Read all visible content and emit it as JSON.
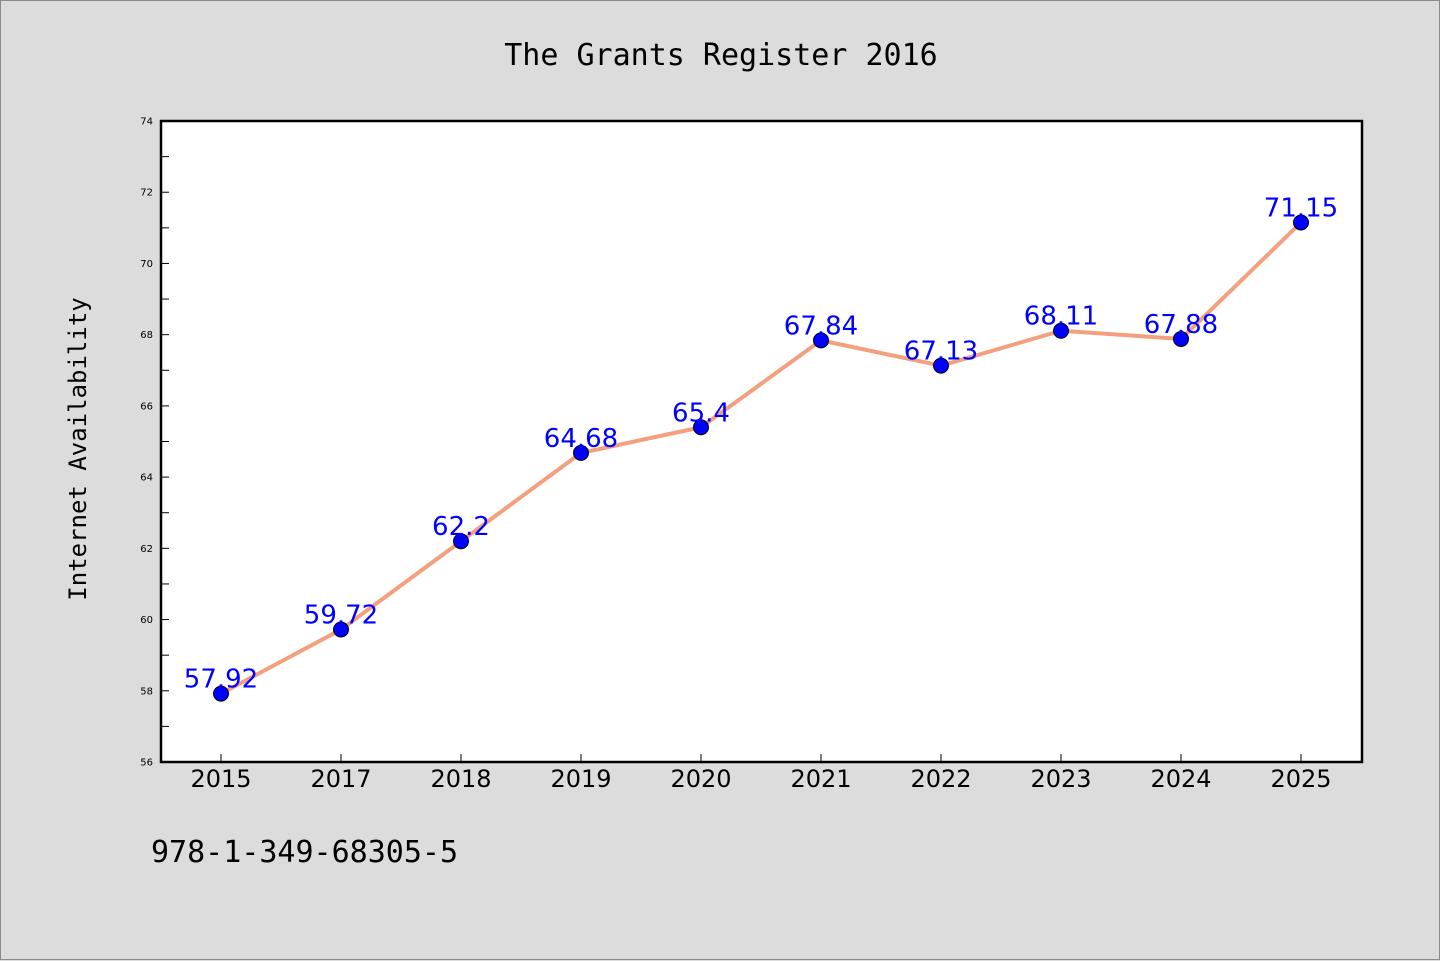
{
  "chart_data": {
    "type": "line",
    "title": "The Grants Register 2016",
    "xlabel": "",
    "ylabel": "Internet Availability",
    "categories": [
      "2015",
      "2017",
      "2018",
      "2019",
      "2020",
      "2021",
      "2022",
      "2023",
      "2024",
      "2025"
    ],
    "series": [
      {
        "values": [
          57.92,
          59.72,
          62.2,
          64.68,
          65.4,
          67.84,
          67.13,
          68.11,
          67.88,
          71.15
        ],
        "labels": [
          "57.92",
          "59.72",
          "62.2",
          "64.68",
          "65.4",
          "67.84",
          "67.13",
          "68.11",
          "67.88",
          "71.15"
        ],
        "line_color": "#f4a07e",
        "marker_color": "#0000ff"
      }
    ],
    "ylim": [
      56,
      74
    ],
    "yticks": [
      "56",
      "58",
      "60",
      "62",
      "64",
      "66",
      "68",
      "70",
      "72",
      "74"
    ],
    "grid": false,
    "legend": "none"
  },
  "footer": {
    "isbn": "978-1-349-68305-5"
  },
  "colors": {
    "background": "#dcdcdc",
    "plot_background": "#ffffff",
    "line": "#f4a07e",
    "marker": "#0000ff",
    "data_label": "#0000ff"
  }
}
